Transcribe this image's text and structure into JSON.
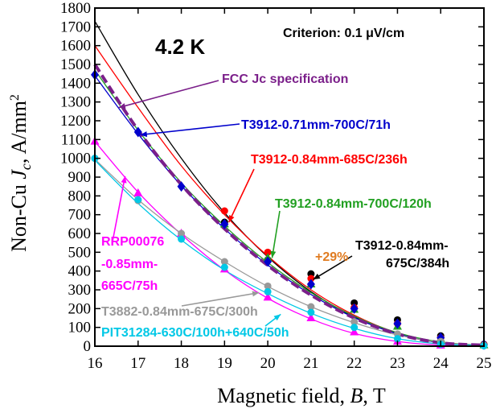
{
  "chart_data": {
    "type": "line",
    "title": "4.2 K",
    "criterion": "Criterion: 0.1 μV/cm",
    "xlabel": "Magnetic field, B, T",
    "ylabel": "Non-Cu Jc, A/mm²",
    "xlim": [
      16,
      25
    ],
    "ylim": [
      0,
      1800
    ],
    "x_ticks": [
      16,
      17,
      18,
      19,
      20,
      21,
      22,
      23,
      24,
      25
    ],
    "y_ticks": [
      0,
      100,
      200,
      300,
      400,
      500,
      600,
      700,
      800,
      900,
      1000,
      1100,
      1200,
      1300,
      1400,
      1500,
      1600,
      1700,
      1800
    ],
    "grid": false,
    "series": [
      {
        "name": "T3912-0.84mm-675C/384h",
        "color": "#000000",
        "marker": "circle",
        "points": [
          [
            19,
            660
          ],
          [
            20,
            460
          ],
          [
            21,
            385
          ],
          [
            22,
            230
          ],
          [
            23,
            140
          ],
          [
            24,
            55
          ],
          [
            25,
            10
          ]
        ],
        "curve": [
          [
            16,
            1730
          ],
          [
            17,
            1340
          ],
          [
            18,
            1000
          ],
          [
            19,
            710
          ],
          [
            20,
            475
          ],
          [
            21,
            290
          ],
          [
            22,
            155
          ],
          [
            23,
            65
          ],
          [
            24,
            18
          ],
          [
            25,
            5
          ]
        ]
      },
      {
        "name": "T3912-0.84mm-685C/236h",
        "color": "#ff0000",
        "marker": "circle",
        "points": [
          [
            19,
            720
          ],
          [
            20,
            500
          ],
          [
            21,
            360
          ],
          [
            22,
            205
          ],
          [
            23,
            120
          ],
          [
            24,
            45
          ],
          [
            25,
            8
          ]
        ],
        "curve": [
          [
            16,
            1600
          ],
          [
            17,
            1270
          ],
          [
            18,
            960
          ],
          [
            19,
            700
          ],
          [
            20,
            480
          ],
          [
            21,
            300
          ],
          [
            22,
            165
          ],
          [
            23,
            70
          ],
          [
            24,
            20
          ],
          [
            25,
            5
          ]
        ]
      },
      {
        "name": "T3912-0.84mm-700C/120h",
        "color": "#22a022",
        "marker": "triangle",
        "points": [
          [
            19,
            650
          ],
          [
            20,
            470
          ],
          [
            21,
            330
          ],
          [
            22,
            195
          ],
          [
            23,
            105
          ],
          [
            24,
            40
          ],
          [
            25,
            6
          ]
        ],
        "curve": [
          [
            16,
            1470
          ],
          [
            17,
            1150
          ],
          [
            18,
            870
          ],
          [
            19,
            640
          ],
          [
            20,
            445
          ],
          [
            21,
            285
          ],
          [
            22,
            160
          ],
          [
            23,
            72
          ],
          [
            24,
            22
          ],
          [
            25,
            5
          ]
        ]
      },
      {
        "name": "T3912-0.71mm-700C/71h",
        "color": "#0000cc",
        "marker": "diamond",
        "points": [
          [
            16,
            1445
          ],
          [
            17,
            1140
          ],
          [
            18,
            850
          ],
          [
            19,
            650
          ],
          [
            20,
            450
          ],
          [
            21,
            330
          ],
          [
            22,
            200
          ],
          [
            23,
            120
          ],
          [
            24,
            45
          ],
          [
            25,
            8
          ]
        ],
        "curve": [
          [
            16,
            1440
          ],
          [
            17,
            1130
          ],
          [
            18,
            855
          ],
          [
            19,
            625
          ],
          [
            20,
            432
          ],
          [
            21,
            275
          ],
          [
            22,
            152
          ],
          [
            23,
            66
          ],
          [
            24,
            18
          ],
          [
            25,
            5
          ]
        ]
      },
      {
        "name": "RRP00076-0.85mm-665C/75h",
        "color": "#ff00ff",
        "marker": "triangle",
        "points": [
          [
            16,
            1090
          ],
          [
            17,
            815
          ],
          [
            18,
            600
          ],
          [
            19,
            410
          ],
          [
            20,
            260
          ],
          [
            21,
            150
          ],
          [
            22,
            75
          ],
          [
            23,
            25
          ],
          [
            24,
            5
          ]
        ],
        "curve": [
          [
            16,
            1090
          ],
          [
            17,
            820
          ],
          [
            18,
            595
          ],
          [
            19,
            405
          ],
          [
            20,
            255
          ],
          [
            21,
            145
          ],
          [
            22,
            68
          ],
          [
            23,
            25
          ],
          [
            24,
            6
          ],
          [
            25,
            2
          ]
        ]
      },
      {
        "name": "T3882-0.84mm-675C/300h",
        "color": "#999999",
        "marker": "circle",
        "points": [
          [
            16,
            1000
          ],
          [
            17,
            775
          ],
          [
            18,
            600
          ],
          [
            19,
            450
          ],
          [
            20,
            320
          ],
          [
            21,
            210
          ],
          [
            22,
            130
          ],
          [
            23,
            65
          ],
          [
            24,
            25
          ],
          [
            25,
            5
          ]
        ],
        "curve": [
          [
            16,
            995
          ],
          [
            17,
            780
          ],
          [
            18,
            600
          ],
          [
            19,
            450
          ],
          [
            20,
            318
          ],
          [
            21,
            210
          ],
          [
            22,
            125
          ],
          [
            23,
            60
          ],
          [
            24,
            20
          ],
          [
            25,
            4
          ]
        ]
      },
      {
        "name": "PIT31284-630C/100h+640C/50h",
        "color": "#00c8e6",
        "marker": "circle",
        "points": [
          [
            16,
            1000
          ],
          [
            17,
            780
          ],
          [
            18,
            570
          ],
          [
            19,
            420
          ],
          [
            20,
            290
          ],
          [
            21,
            180
          ],
          [
            22,
            100
          ],
          [
            23,
            40
          ],
          [
            24,
            10
          ],
          [
            25,
            2
          ]
        ],
        "curve": [
          [
            16,
            990
          ],
          [
            17,
            760
          ],
          [
            18,
            565
          ],
          [
            19,
            405
          ],
          [
            20,
            280
          ],
          [
            21,
            175
          ],
          [
            22,
            95
          ],
          [
            23,
            40
          ],
          [
            24,
            12
          ],
          [
            25,
            3
          ]
        ]
      }
    ],
    "spec_curve": {
      "name": "FCC Jc specification",
      "color": "#7b1f8a",
      "style": "dashed",
      "curve": [
        [
          16,
          1500
        ],
        [
          17,
          1150
        ],
        [
          18,
          860
        ],
        [
          19,
          625
        ],
        [
          20,
          430
        ],
        [
          21,
          272
        ],
        [
          22,
          150
        ],
        [
          23,
          65
        ],
        [
          24,
          18
        ],
        [
          25,
          5
        ]
      ]
    },
    "annotations": [
      {
        "text": "FCC Jc specification",
        "color": "#7b1f8a"
      },
      {
        "text": "T3912-0.71mm-700C/71h",
        "color": "#0000cc"
      },
      {
        "text": "T3912-0.84mm-685C/236h",
        "color": "#ff0000"
      },
      {
        "text": "T3912-0.84mm-700C/120h",
        "color": "#22a022"
      },
      {
        "text": "+29%",
        "color": "#e07b20"
      },
      {
        "text": "T3912-0.84mm-",
        "color": "#000000"
      },
      {
        "text": "675C/384h",
        "color": "#000000"
      },
      {
        "text": "RRP00076",
        "color": "#ff00ff"
      },
      {
        "text": "-0.85mm-",
        "color": "#ff00ff"
      },
      {
        "text": "665C/75h",
        "color": "#ff00ff"
      },
      {
        "text": "T3882-0.84mm-675C/300h",
        "color": "#999999"
      },
      {
        "text": "PIT31284-630C/100h+640C/50h",
        "color": "#00c8e6"
      }
    ]
  }
}
